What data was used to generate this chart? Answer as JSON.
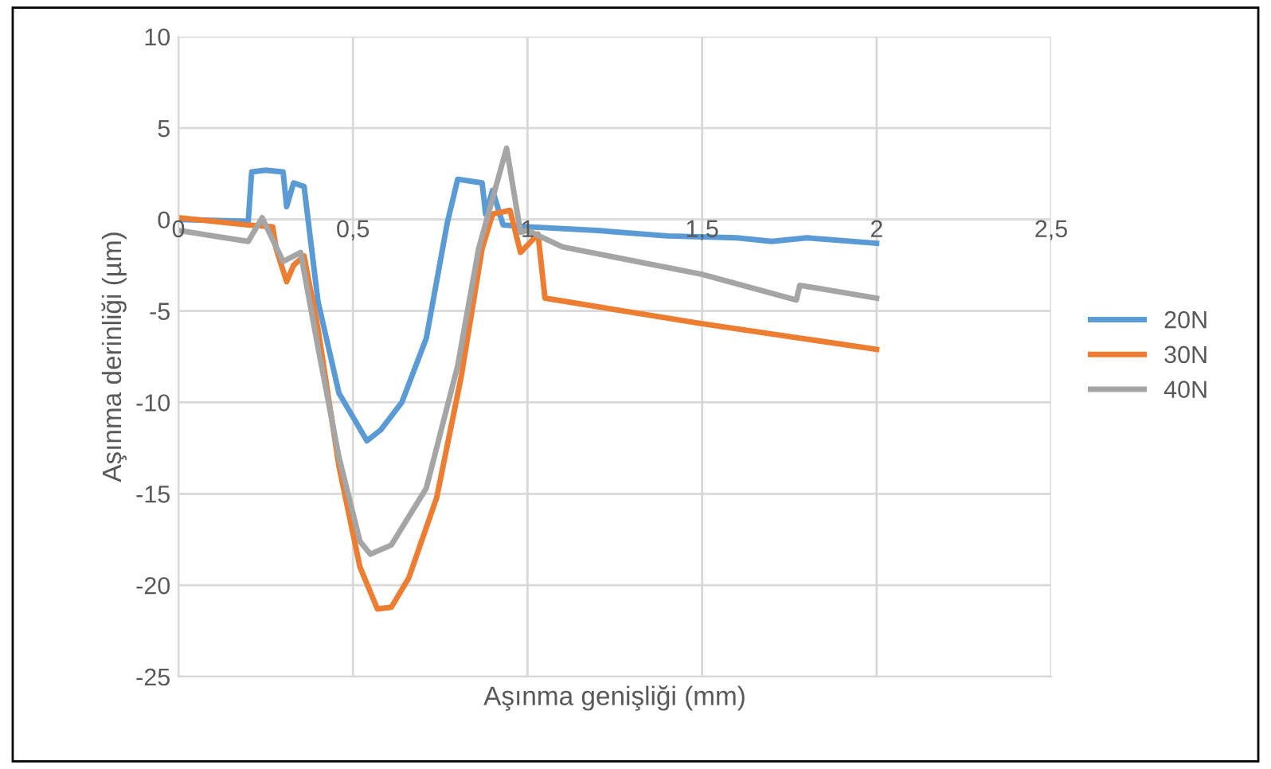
{
  "chart_data": {
    "type": "line",
    "xlabel": "Aşınma genişliği (mm)",
    "ylabel": "Aşınma derinliği (µm)",
    "xlim": [
      0,
      2.5
    ],
    "xticks": [
      {
        "value": 0,
        "label": "0"
      },
      {
        "value": 0.5,
        "label": "0,5"
      },
      {
        "value": 1,
        "label": "1"
      },
      {
        "value": 1.5,
        "label": "1,5"
      },
      {
        "value": 2,
        "label": "2"
      },
      {
        "value": 2.5,
        "label": "2,5"
      }
    ],
    "ylim": [
      -25,
      10
    ],
    "yticks": [
      -25,
      -20,
      -15,
      -10,
      -5,
      0,
      5,
      10
    ],
    "grid": true,
    "legend": "right",
    "marker": "none",
    "line_style": "solid",
    "series": [
      {
        "name": "20N",
        "color": "#5b9bd5",
        "x": [
          0,
          0.2,
          0.21,
          0.25,
          0.3,
          0.31,
          0.33,
          0.36,
          0.4,
          0.46,
          0.54,
          0.58,
          0.64,
          0.71,
          0.77,
          0.8,
          0.87,
          0.88,
          0.9,
          0.93,
          1.0,
          1.2,
          1.4,
          1.6,
          1.7,
          1.8,
          2.0
        ],
        "values": [
          0,
          -0.1,
          2.6,
          2.7,
          2.6,
          0.7,
          2.0,
          1.8,
          -4.5,
          -9.5,
          -12.1,
          -11.5,
          -10,
          -6.5,
          -0.2,
          2.2,
          2.0,
          0.3,
          1.6,
          -0.3,
          -0.4,
          -0.6,
          -0.9,
          -1.0,
          -1.2,
          -1.0,
          -1.3
        ]
      },
      {
        "name": "30N",
        "color": "#ed7d31",
        "x": [
          0,
          0.2,
          0.27,
          0.28,
          0.31,
          0.33,
          0.36,
          0.4,
          0.46,
          0.52,
          0.57,
          0.61,
          0.66,
          0.74,
          0.81,
          0.87,
          0.9,
          0.95,
          0.98,
          1.03,
          1.05,
          1.5,
          2.0
        ],
        "values": [
          0.1,
          -0.3,
          -0.4,
          -1.6,
          -3.4,
          -2.5,
          -2.0,
          -6,
          -13.5,
          -19,
          -21.3,
          -21.2,
          -19.6,
          -15.2,
          -8.6,
          -1.6,
          0.3,
          0.5,
          -1.8,
          -0.8,
          -4.3,
          -5.7,
          -7.1
        ]
      },
      {
        "name": "40N",
        "color": "#a5a5a5",
        "x": [
          0,
          0.2,
          0.24,
          0.3,
          0.35,
          0.4,
          0.46,
          0.52,
          0.55,
          0.61,
          0.71,
          0.8,
          0.86,
          0.94,
          0.98,
          1.0,
          1.1,
          1.5,
          1.77,
          1.78,
          2.0
        ],
        "values": [
          -0.6,
          -1.2,
          0.1,
          -2.3,
          -1.8,
          -7,
          -13,
          -17.6,
          -18.3,
          -17.8,
          -14.7,
          -8,
          -1.6,
          3.9,
          -0.7,
          -0.6,
          -1.5,
          -3.0,
          -4.4,
          -3.6,
          -4.3
        ]
      }
    ]
  }
}
